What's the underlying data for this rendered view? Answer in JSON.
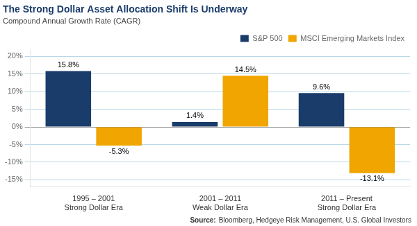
{
  "chart_data": {
    "type": "bar",
    "title": "The Strong Dollar Asset Allocation Shift Is Underway",
    "subtitle": "Compound Annual Growth Rate (CAGR)",
    "categories": [
      "1995 – 2001\nStrong Dollar Era",
      "2001 – 2011\nWeak Dollar Era",
      "2011 – Present\nStrong Dollar Era"
    ],
    "series": [
      {
        "name": "S&P 500",
        "color": "#1a3c6b",
        "values": [
          15.8,
          1.4,
          9.6
        ],
        "value_labels": [
          "15.8%",
          "1.4%",
          "9.6%"
        ]
      },
      {
        "name": "MSCI Emerging Markets Index",
        "color": "#f0a500",
        "values": [
          -5.3,
          14.5,
          -13.1
        ],
        "value_labels": [
          "-5.3%",
          "14.5%",
          "-13.1%"
        ]
      }
    ],
    "ylim": [
      -17,
      22
    ],
    "yticks": [
      {
        "value": -15,
        "label": "-15%"
      },
      {
        "value": -10,
        "label": "-10%"
      },
      {
        "value": -5,
        "label": "-5%"
      },
      {
        "value": 0,
        "label": "0%"
      },
      {
        "value": 5,
        "label": "5%"
      },
      {
        "value": 10,
        "label": "10%"
      },
      {
        "value": 15,
        "label": "15%"
      },
      {
        "value": 20,
        "label": "20%"
      }
    ],
    "grid": true,
    "legend": "upper right",
    "data_labels": true,
    "annotations": [
      "Source:",
      "Bloomberg, Hedgeye Risk Management, U.S. Global Investors"
    ]
  }
}
